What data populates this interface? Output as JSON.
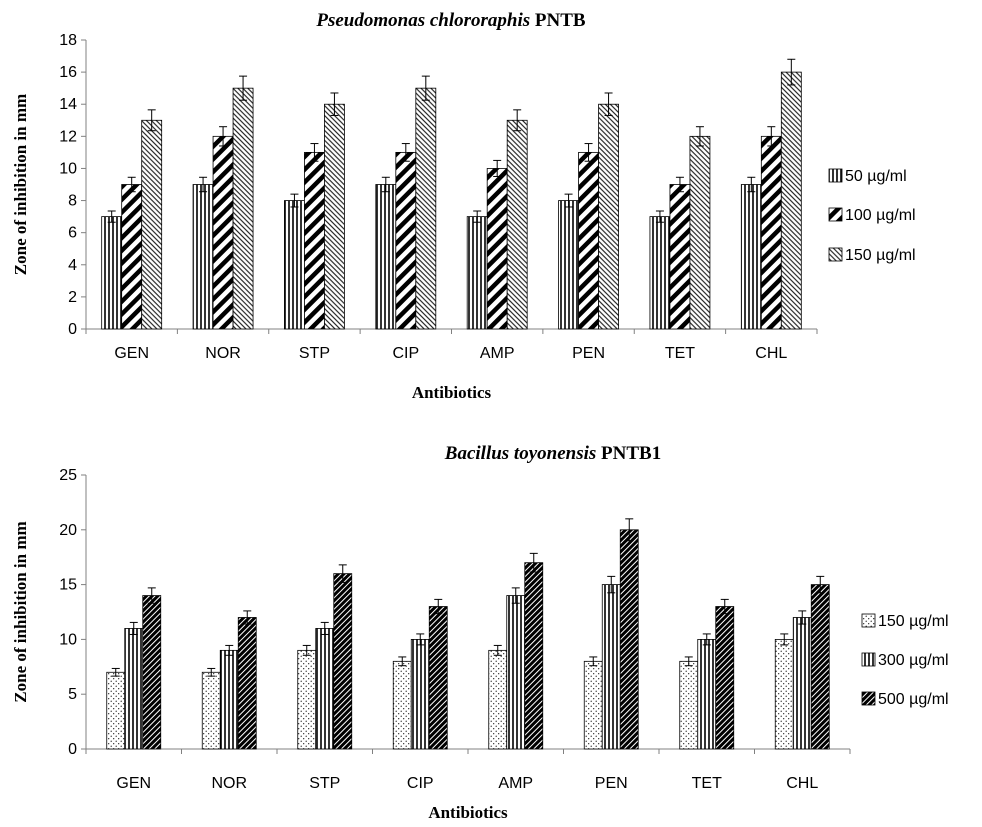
{
  "chart_data": [
    {
      "type": "bar",
      "title_italic": "Pseudomonas chlororaphis",
      "title_rest": "PNTB",
      "xlabel": "Antibiotics",
      "ylabel": "Zone of inhibition in mm",
      "ylim": [
        0,
        18
      ],
      "ytick_step": 2,
      "grid": false,
      "legend_position": "right",
      "categories": [
        "GEN",
        "NOR",
        "STP",
        "CIP",
        "AMP",
        "PEN",
        "TET",
        "CHL"
      ],
      "series": [
        {
          "name": "50 µg/ml",
          "pattern": "vertical",
          "values": [
            7,
            9,
            8,
            9,
            7,
            8,
            7,
            9
          ],
          "errors": [
            0.35,
            0.45,
            0.4,
            0.45,
            0.35,
            0.4,
            0.35,
            0.45
          ]
        },
        {
          "name": "100  µg/ml",
          "pattern": "diag-thick",
          "values": [
            9,
            12,
            11,
            11,
            10,
            11,
            9,
            12
          ],
          "errors": [
            0.45,
            0.6,
            0.55,
            0.55,
            0.5,
            0.55,
            0.45,
            0.6
          ]
        },
        {
          "name": "150 µg/ml",
          "pattern": "diag-thin",
          "values": [
            13,
            15,
            14,
            15,
            13,
            14,
            12,
            16
          ],
          "errors": [
            0.65,
            0.75,
            0.7,
            0.75,
            0.65,
            0.7,
            0.6,
            0.8
          ]
        }
      ]
    },
    {
      "type": "bar",
      "title_italic": "Bacillus toyonensis",
      "title_rest": "PNTB1",
      "xlabel": "Antibiotics",
      "ylabel": "Zone of inhibition in mm",
      "ylim": [
        0,
        25
      ],
      "ytick_step": 5,
      "grid": false,
      "legend_position": "right",
      "categories": [
        "GEN",
        "NOR",
        "STP",
        "CIP",
        "AMP",
        "PEN",
        "TET",
        "CHL"
      ],
      "series": [
        {
          "name": "150 µg/ml",
          "pattern": "dots",
          "values": [
            7,
            7,
            9,
            8,
            9,
            8,
            8,
            10
          ],
          "errors": [
            0.35,
            0.35,
            0.45,
            0.4,
            0.45,
            0.4,
            0.4,
            0.5
          ]
        },
        {
          "name": "300 µg/ml",
          "pattern": "vertical",
          "values": [
            11,
            9,
            11,
            10,
            14,
            15,
            10,
            12
          ],
          "errors": [
            0.55,
            0.45,
            0.55,
            0.5,
            0.7,
            0.75,
            0.5,
            0.6
          ]
        },
        {
          "name": "500 µg/ml",
          "pattern": "diag-dark",
          "values": [
            14,
            12,
            16,
            13,
            17,
            20,
            13,
            15
          ],
          "errors": [
            0.7,
            0.6,
            0.8,
            0.65,
            0.85,
            1.0,
            0.65,
            0.75
          ]
        }
      ]
    }
  ]
}
